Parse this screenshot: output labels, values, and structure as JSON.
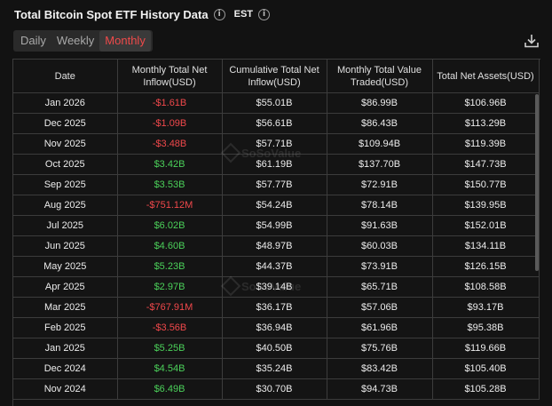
{
  "header": {
    "title": "Total Bitcoin Spot ETF History Data",
    "timezone": "EST"
  },
  "tabs": [
    {
      "label": "Daily",
      "active": false
    },
    {
      "label": "Weekly",
      "active": false
    },
    {
      "label": "Monthly",
      "active": true
    }
  ],
  "icons": {
    "info": "info-icon",
    "download": "download-icon"
  },
  "colors": {
    "negative": "#f0484b",
    "positive": "#4bd15a",
    "active_tab": "#ef4a4a"
  },
  "watermark": "SoSoValue",
  "table": {
    "columns": [
      "Date",
      "Monthly Total Net Inflow(USD)",
      "Cumulative Total Net Inflow(USD)",
      "Monthly Total Value Traded(USD)",
      "Total Net Assets(USD)"
    ],
    "rows": [
      {
        "date": "Jan 2026",
        "net_inflow": "-$1.61B",
        "sign": "neg",
        "cumulative": "$55.01B",
        "traded": "$86.99B",
        "assets": "$106.96B"
      },
      {
        "date": "Dec 2025",
        "net_inflow": "-$1.09B",
        "sign": "neg",
        "cumulative": "$56.61B",
        "traded": "$86.43B",
        "assets": "$113.29B"
      },
      {
        "date": "Nov 2025",
        "net_inflow": "-$3.48B",
        "sign": "neg",
        "cumulative": "$57.71B",
        "traded": "$109.94B",
        "assets": "$119.39B"
      },
      {
        "date": "Oct 2025",
        "net_inflow": "$3.42B",
        "sign": "pos",
        "cumulative": "$61.19B",
        "traded": "$137.70B",
        "assets": "$147.73B"
      },
      {
        "date": "Sep 2025",
        "net_inflow": "$3.53B",
        "sign": "pos",
        "cumulative": "$57.77B",
        "traded": "$72.91B",
        "assets": "$150.77B"
      },
      {
        "date": "Aug 2025",
        "net_inflow": "-$751.12M",
        "sign": "neg",
        "cumulative": "$54.24B",
        "traded": "$78.14B",
        "assets": "$139.95B"
      },
      {
        "date": "Jul 2025",
        "net_inflow": "$6.02B",
        "sign": "pos",
        "cumulative": "$54.99B",
        "traded": "$91.63B",
        "assets": "$152.01B"
      },
      {
        "date": "Jun 2025",
        "net_inflow": "$4.60B",
        "sign": "pos",
        "cumulative": "$48.97B",
        "traded": "$60.03B",
        "assets": "$134.11B"
      },
      {
        "date": "May 2025",
        "net_inflow": "$5.23B",
        "sign": "pos",
        "cumulative": "$44.37B",
        "traded": "$73.91B",
        "assets": "$126.15B"
      },
      {
        "date": "Apr 2025",
        "net_inflow": "$2.97B",
        "sign": "pos",
        "cumulative": "$39.14B",
        "traded": "$65.71B",
        "assets": "$108.58B"
      },
      {
        "date": "Mar 2025",
        "net_inflow": "-$767.91M",
        "sign": "neg",
        "cumulative": "$36.17B",
        "traded": "$57.06B",
        "assets": "$93.17B"
      },
      {
        "date": "Feb 2025",
        "net_inflow": "-$3.56B",
        "sign": "neg",
        "cumulative": "$36.94B",
        "traded": "$61.96B",
        "assets": "$95.38B"
      },
      {
        "date": "Jan 2025",
        "net_inflow": "$5.25B",
        "sign": "pos",
        "cumulative": "$40.50B",
        "traded": "$75.76B",
        "assets": "$119.66B"
      },
      {
        "date": "Dec 2024",
        "net_inflow": "$4.54B",
        "sign": "pos",
        "cumulative": "$35.24B",
        "traded": "$83.42B",
        "assets": "$105.40B"
      },
      {
        "date": "Nov 2024",
        "net_inflow": "$6.49B",
        "sign": "pos",
        "cumulative": "$30.70B",
        "traded": "$94.73B",
        "assets": "$105.28B"
      }
    ]
  }
}
